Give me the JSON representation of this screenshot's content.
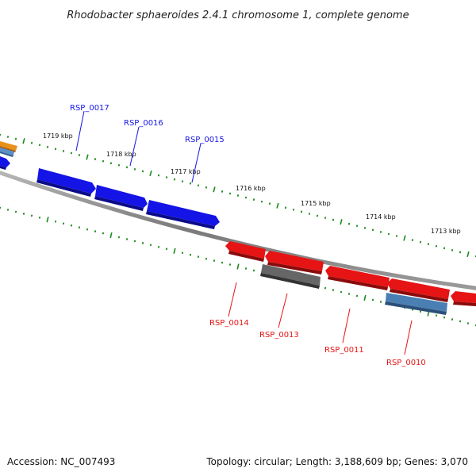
{
  "title": "Rhodobacter sphaeroides 2.4.1 chromosome 1, complete genome",
  "footer": {
    "accession": "Accession: NC_007493",
    "summary": "Topology: circular; Length: 3,188,609 bp; Genes: 3,070"
  },
  "scale_labels": [
    "1719 kbp",
    "1718 kbp",
    "1717 kbp",
    "1716 kbp",
    "1715 kbp",
    "1714 kbp",
    "1713 kbp"
  ],
  "genes_forward": [
    {
      "label": "RSP_0017",
      "color": "#1414e6"
    },
    {
      "label": "RSP_0016",
      "color": "#1414e6"
    },
    {
      "label": "RSP_0015",
      "color": "#1414e6"
    }
  ],
  "genes_reverse": [
    {
      "label": "RSP_0014",
      "color": "#e61414"
    },
    {
      "label": "RSP_0013",
      "color": "#666666"
    },
    {
      "label": "RSP_0011",
      "color": "#e61414"
    },
    {
      "label": "RSP_0010",
      "color": "#4a7fb3"
    }
  ],
  "colors": {
    "forward_strand": "#1414e6",
    "reverse_strand": "#e61414",
    "pseudogene": "#666666",
    "rna_gene": "#4a7fb3",
    "other_gene": "#e8901a",
    "backbone": "#888888",
    "tick": "#1a8a1a"
  }
}
